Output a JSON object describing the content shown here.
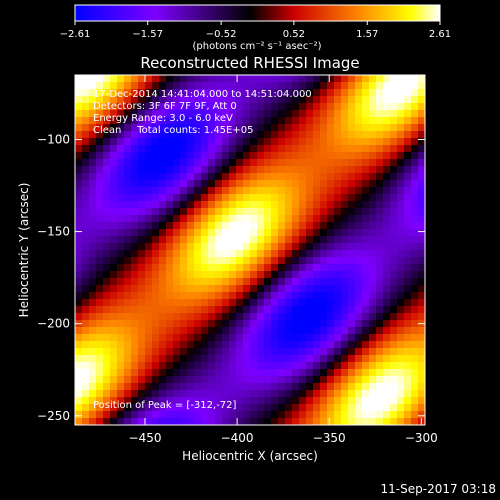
{
  "chart_data": {
    "type": "heatmap",
    "title": "Reconstructed RHESSI Image",
    "xlabel": "Heliocentric X (arcsec)",
    "ylabel": "Heliocentric Y (arcsec)",
    "xlim": [
      -488,
      -298
    ],
    "ylim": [
      -255,
      -65
    ],
    "xticks": [
      {
        "value": -450,
        "label": "−450"
      },
      {
        "value": -400,
        "label": "−400"
      },
      {
        "value": -350,
        "label": "−350"
      },
      {
        "value": -300,
        "label": "−300"
      }
    ],
    "yticks": [
      {
        "value": -100,
        "label": "−100"
      },
      {
        "value": -150,
        "label": "−150"
      },
      {
        "value": -200,
        "label": "−200"
      },
      {
        "value": -250,
        "label": "−250"
      }
    ],
    "colorbar": {
      "min": -2.61,
      "max": 2.61,
      "ticks": [
        {
          "value": -2.61,
          "label": "−2.61"
        },
        {
          "value": -1.57,
          "label": "−1.57"
        },
        {
          "value": -0.52,
          "label": "−0.52"
        },
        {
          "value": 0.52,
          "label": "0.52"
        },
        {
          "value": 1.57,
          "label": "1.57"
        },
        {
          "value": 2.61,
          "label": "2.61"
        }
      ],
      "unit_label": "(photons cm⁻² s⁻¹ asec⁻²)",
      "colormap": [
        "#0000ff",
        "#7d00ff",
        "#000000",
        "#cc0000",
        "#ff8800",
        "#ffff00",
        "#ffffff"
      ]
    },
    "peak": {
      "x": -312,
      "y": -72
    },
    "info_lines": [
      "17-Dec-2014 14:41:04.000 to 14:51:04.000",
      "Detectors: 3F 6F 7F 9F, Att 0",
      "Energy Range: 3.0 - 6.0 keV",
      "Clean     Total counts: 1.45E+05"
    ],
    "peak_label": "Position of Peak = [-312,-72]",
    "grid": false
  },
  "footer": {
    "timestamp": "11-Sep-2017 03:18"
  }
}
